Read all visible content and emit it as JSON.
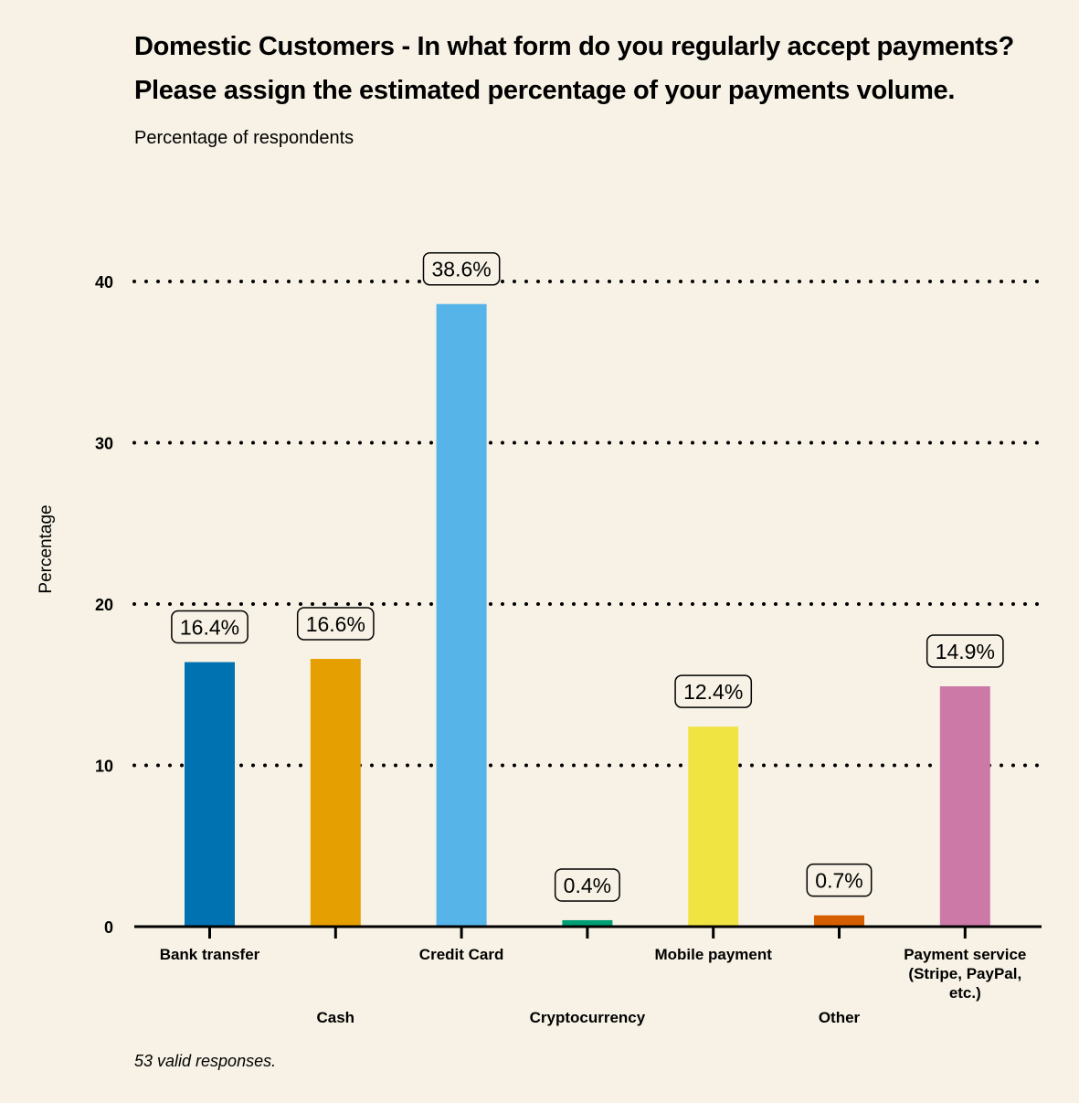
{
  "chart_data": {
    "type": "bar",
    "title": "Domestic Customers - In what form do you regularly accept payments?",
    "title_line2": "Please assign the estimated percentage of your payments volume.",
    "subtitle": "Percentage of respondents",
    "xlabel": "",
    "ylabel": "Percentage",
    "ylim": [
      0,
      40
    ],
    "yticks": [
      0,
      10,
      20,
      30,
      40
    ],
    "grid": "horizontal dotted",
    "legend": "none",
    "categories": [
      "Bank transfer",
      "Cash",
      "Credit Card",
      "Cryptocurrency",
      "Mobile payment",
      "Other",
      "Payment service (Stripe, PayPal, etc.)"
    ],
    "category_label_lines": [
      [
        "Bank transfer"
      ],
      [
        "Cash"
      ],
      [
        "Credit Card"
      ],
      [
        "Cryptocurrency"
      ],
      [
        "Mobile payment"
      ],
      [
        "Other"
      ],
      [
        "Payment service",
        "(Stripe, PayPal,",
        "etc.)"
      ]
    ],
    "values": [
      16.4,
      16.6,
      38.6,
      0.4,
      12.4,
      0.7,
      14.9
    ],
    "data_labels": [
      "16.4%",
      "16.6%",
      "38.6%",
      "0.4%",
      "12.4%",
      "0.7%",
      "14.9%"
    ],
    "colors": [
      "#0072b2",
      "#e69f00",
      "#56b4e9",
      "#009e73",
      "#f0e442",
      "#d55e00",
      "#cc79a7"
    ],
    "footnote": "53 valid responses."
  }
}
